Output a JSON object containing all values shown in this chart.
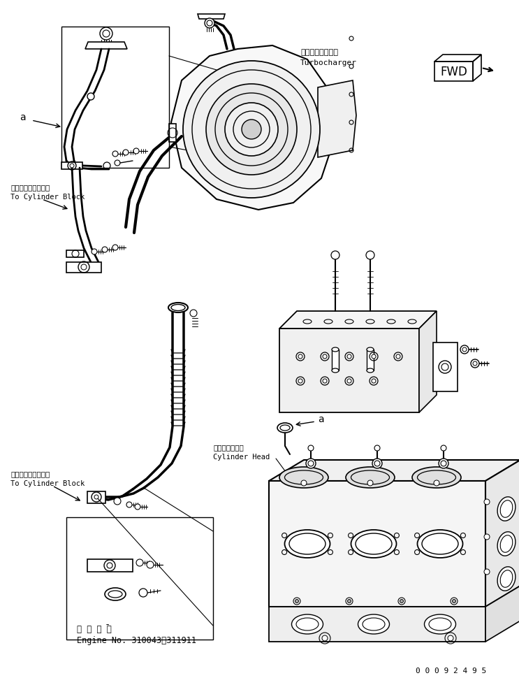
{
  "bg_color": "#ffffff",
  "line_color": "#000000",
  "text_color": "#000000",
  "labels": {
    "turbocharger_jp": "ターボチャージャ",
    "turbocharger_en": "Turbocharger",
    "cylinder_block_jp1": "シリンダブロックへ",
    "cylinder_block_en1": "To Cylinder Block",
    "cylinder_block_jp2": "シリンダブロックへ",
    "cylinder_block_en2": "To Cylinder Block",
    "cylinder_head_jp": "シリンダヘッド",
    "cylinder_head_en": "Cylinder Head",
    "applicable_jp": "適 用 号 機",
    "applicable_en": "Engine No. 310043～311911",
    "part_number": "0 0 0 9 2 4 9 5",
    "label_a1": "a",
    "label_a2": "a",
    "label_fwd": "FWD"
  },
  "figsize": [
    7.43,
    9.8
  ],
  "dpi": 100
}
